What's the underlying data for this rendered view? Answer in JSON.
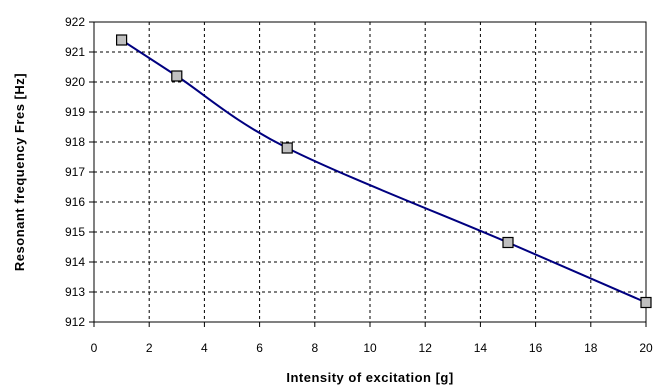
{
  "chart_data": {
    "type": "line",
    "xlabel": "Intensity of excitation [g]",
    "ylabel": "Resonant frequency Fres  [Hz]",
    "xlim": [
      0,
      20
    ],
    "ylim": [
      912,
      922
    ],
    "x_ticks": [
      "0",
      "2",
      "4",
      "6",
      "8",
      "10",
      "12",
      "14",
      "16",
      "18",
      "20"
    ],
    "y_ticks": [
      "912",
      "913",
      "914",
      "915",
      "916",
      "917",
      "918",
      "919",
      "920",
      "921",
      "922"
    ],
    "grid": true,
    "legend": "none",
    "series": [
      {
        "x": [
          1,
          3,
          7,
          15,
          20
        ],
        "y": [
          921.4,
          920.2,
          917.8,
          914.65,
          912.65
        ],
        "line_color": "#000080",
        "marker": "square",
        "marker_fill": "#c0c0c0"
      }
    ]
  }
}
